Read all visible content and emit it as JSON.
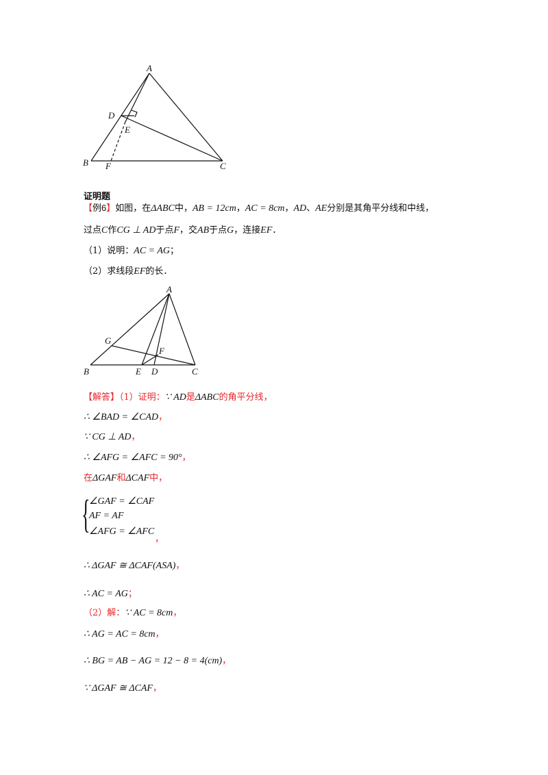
{
  "figure1": {
    "labels": {
      "A": "A",
      "D": "D",
      "E": "E",
      "B": "B",
      "F": "F",
      "C": "C"
    }
  },
  "section_title": "证明题",
  "problem": {
    "line1": {
      "bracket_open": "【",
      "tag": "例6",
      "bracket_close": "】",
      "t1": "如图，在",
      "m1": "ΔABC",
      "t2": "中，",
      "m2": "AB = 12cm",
      "t3": "，",
      "m3": "AC = 8cm",
      "t4": "，",
      "m4": "AD",
      "t5": "、",
      "m5": "AE",
      "t6": "分别是其角平分线和中线，"
    },
    "line2": {
      "t1": "过点",
      "m1": "C",
      "t2": "作",
      "m2": "CG ⊥ AD",
      "t3": "于点",
      "m3": "F",
      "t4": "，交",
      "m4": "AB",
      "t5": "于点",
      "m5": "G",
      "t6": "，连接",
      "m6": "EF",
      "t7": "．"
    },
    "q1": {
      "prefix": "（1）说明：",
      "math": "AC = AG",
      "suffix": "；"
    },
    "q2": {
      "prefix": "（2）求线段",
      "math": "EF",
      "suffix": "的长．"
    }
  },
  "figure2": {
    "labels": {
      "A": "A",
      "G": "G",
      "F": "F",
      "B": "B",
      "E": "E",
      "D": "D",
      "C": "C"
    }
  },
  "solution": {
    "l1": {
      "tag": "【解答】",
      "t1": "（1）证明：",
      "m1": "∵ AD",
      "t2": "是",
      "m2": "ΔABC",
      "t3": "的角平分线，"
    },
    "l2": {
      "m": "∴ ∠BAD = ∠CAD",
      "p": "，"
    },
    "l3": {
      "m": "∵ CG ⊥ AD",
      "p": "，"
    },
    "l4": {
      "m": "∴ ∠AFG = ∠AFC = 90°",
      "p": "，"
    },
    "l5": {
      "t1": "在",
      "m1": "ΔGAF",
      "t2": "和",
      "m2": "ΔCAF",
      "t3": "中，"
    },
    "system": [
      "∠GAF = ∠CAF",
      "AF = AF",
      "∠AFG = ∠AFC"
    ],
    "system_brace": "{",
    "system_punct": "，",
    "l6": {
      "m": "∴ ΔGAF ≅ ΔCAF(ASA)",
      "p": "，"
    },
    "l7": {
      "m": "∴ AC = AG",
      "p": "；"
    },
    "l8": {
      "t1": "（2）解：",
      "m": "∵ AC = 8cm",
      "p": "，"
    },
    "l9": {
      "m": "∴ AG = AC = 8cm",
      "p": "，"
    },
    "l10": {
      "m": "∴ BG = AB − AG = 12 − 8 = 4(cm)",
      "p": "，"
    },
    "l11": {
      "m": "∵ ΔGAF ≅ ΔCAF",
      "p": "，"
    }
  }
}
